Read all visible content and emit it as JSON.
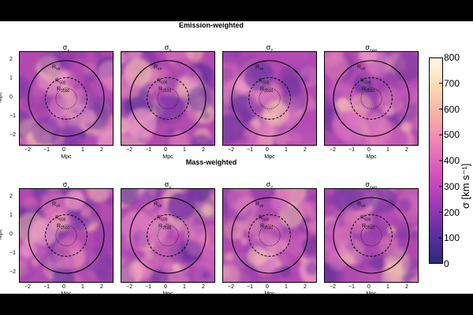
{
  "figure": {
    "top_title": "Emission-weighted",
    "bottom_title": "Mass-weighted",
    "panel_titles": [
      "σ_x",
      "σ_y",
      "σ_z",
      "σ_cen"
    ],
    "x_axis_label": "Mpc",
    "y_axis_label": "Mpc",
    "x_ticks": [
      "−2",
      "−1",
      "0",
      "1",
      "2"
    ],
    "y_ticks": [
      "2",
      "1",
      "0",
      "−1",
      "−2"
    ],
    "circle_labels": {
      "rvir": "R_vir",
      "r500": "R_500",
      "r2500": "R_2500"
    },
    "colorbar": {
      "label": "σ [km s⁻¹]",
      "ticks": [
        "800",
        "700",
        "600",
        "500",
        "400",
        "300",
        "200",
        "100",
        "0"
      ],
      "range": [
        0,
        800
      ],
      "colors": [
        "#2a2a7a",
        "#5b2fa0",
        "#9a38b4",
        "#d14fbc",
        "#ea7ab6",
        "#f6a8a6",
        "#fcd7b0",
        "#fffbe8"
      ]
    }
  }
}
